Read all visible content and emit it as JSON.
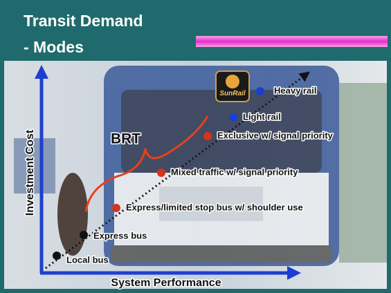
{
  "header": {
    "title_lines": [
      "Transit Demand",
      "- Modes"
    ]
  },
  "axes": {
    "y_label": "Investment Cost",
    "x_label": "System Performance"
  },
  "brace_label": "BRT",
  "logo": "SunRail",
  "nodes": [
    {
      "label": "Local bus"
    },
    {
      "label": "Express bus"
    },
    {
      "label": "Express/limited stop bus w/ shoulder use"
    },
    {
      "label": "Mixed traffic w/ signal priority"
    },
    {
      "label": "Exclusive w/ signal priority"
    },
    {
      "label": "Light rail"
    },
    {
      "label": "Heavy rail"
    }
  ]
}
